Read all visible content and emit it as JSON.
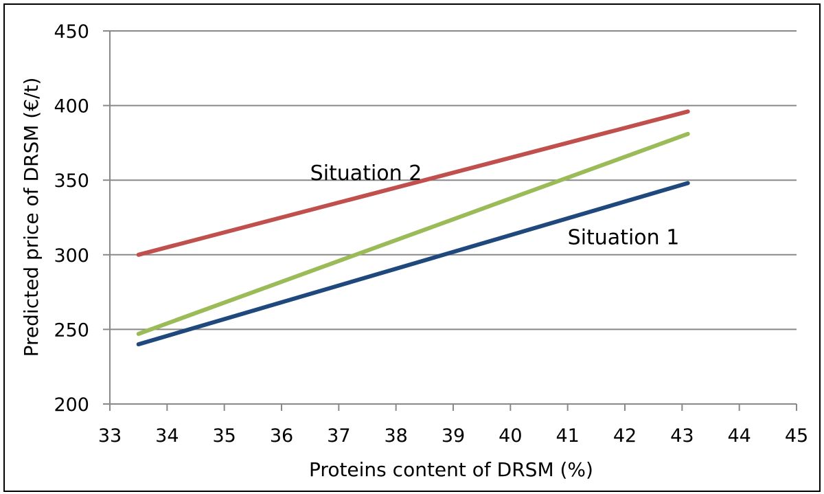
{
  "chart_data": {
    "type": "line",
    "title": "",
    "xlabel": "Proteins content of DRSM (%)",
    "ylabel": "Predicted price of DRSM (€/t)",
    "xlim": [
      33,
      45
    ],
    "ylim": [
      200,
      450
    ],
    "x_ticks": [
      33,
      34,
      35,
      36,
      37,
      38,
      39,
      40,
      41,
      42,
      43,
      44,
      45
    ],
    "y_ticks": [
      200,
      250,
      300,
      350,
      400,
      450
    ],
    "grid": "horizontal",
    "legend": "none",
    "series": [
      {
        "x": [
          33.5,
          43.1
        ],
        "y": [
          240,
          348
        ],
        "color": "#1f497d"
      },
      {
        "x": [
          33.5,
          43.1
        ],
        "y": [
          300,
          396
        ],
        "color": "#c0504d"
      },
      {
        "x": [
          33.5,
          43.1
        ],
        "y": [
          247,
          381
        ],
        "color": "#9bbb59"
      }
    ],
    "annotations": [
      {
        "text": "Situation 2",
        "x": 36.5,
        "y": 350
      },
      {
        "text": "Situation 1",
        "x": 41.0,
        "y": 307
      }
    ]
  }
}
